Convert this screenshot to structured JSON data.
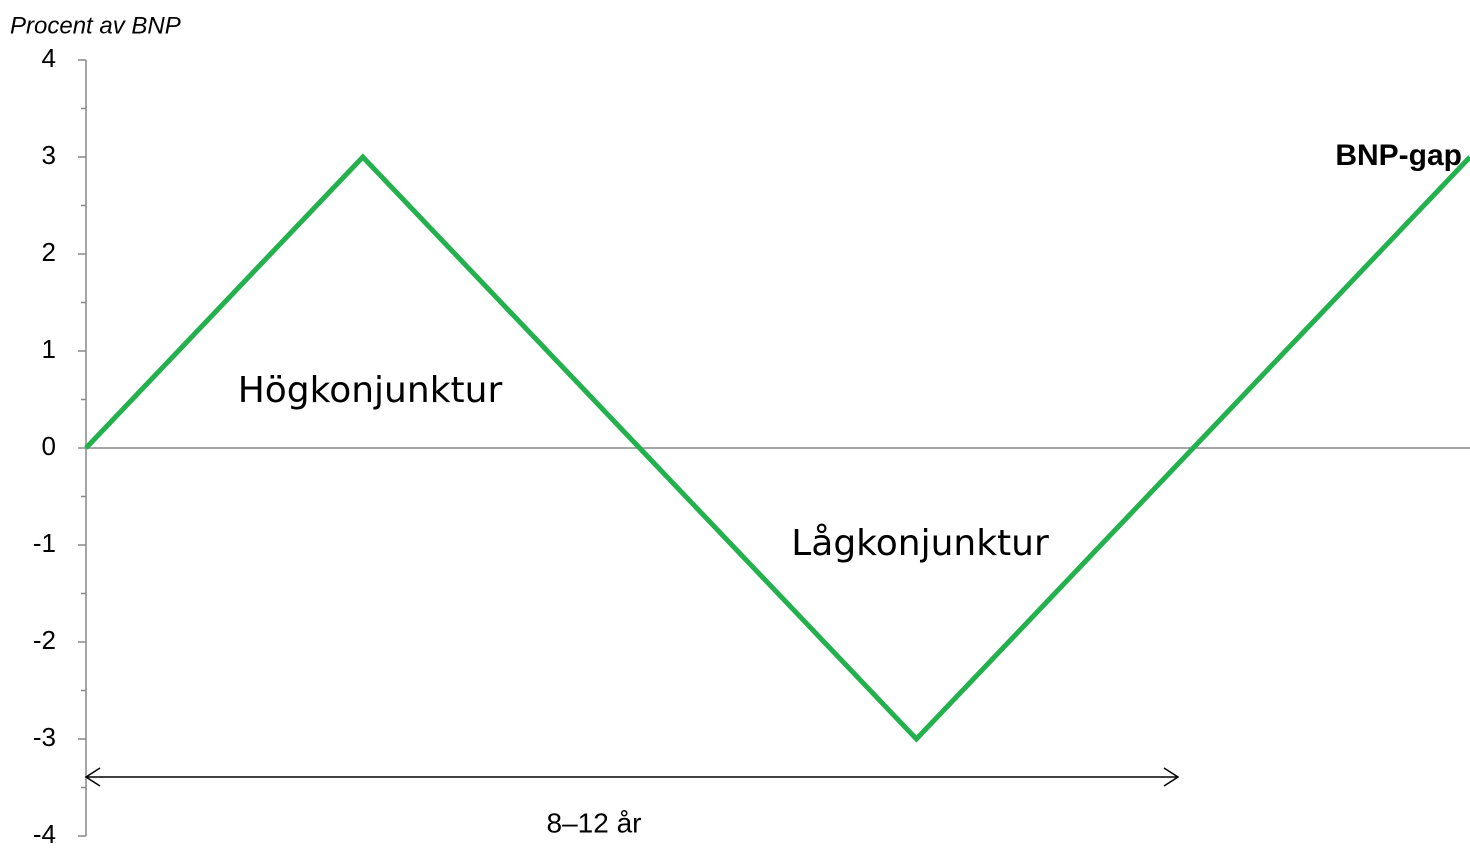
{
  "chart_data": {
    "type": "line",
    "y_label": "Procent av BNP",
    "x": [
      0,
      1,
      2,
      3,
      4,
      5
    ],
    "xlim": [
      0,
      5
    ],
    "series": [
      {
        "name": "BNP-gap",
        "color": "#22b14c",
        "values": [
          0,
          3,
          0,
          -3,
          0,
          3
        ]
      }
    ],
    "ylim": [
      -4,
      4
    ],
    "yticks": [
      -4,
      -3,
      -2,
      -1,
      0,
      1,
      2,
      3,
      4
    ],
    "yminorticks": [
      -3.5,
      -2.5,
      -1.5,
      -0.5,
      0.5,
      1.5,
      2.5,
      3.5
    ],
    "annotations": [
      "Högkonjunktur",
      "Lågkonjunktur",
      "8–12 år"
    ]
  }
}
